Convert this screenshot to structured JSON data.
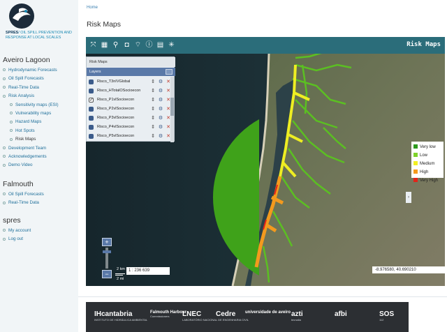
{
  "logo": {
    "brand": "SPRES",
    "tagline": "/ OIL SPILL PREVENTION AND RESPONSE AT LOCAL SCALES",
    "tagline_lines": [
      "SPRES / OIL SPILL",
      "PREVENTION AND",
      "RESPONSE AT",
      "LOCAL SCALES"
    ]
  },
  "sidebar": {
    "sections": [
      {
        "title": "Aveiro Lagoon",
        "items": [
          {
            "label": "Hydrodynamic Forecasts",
            "level": 1
          },
          {
            "label": "Oil Spill Forecasts",
            "level": 1
          },
          {
            "label": "Real-Time Data",
            "level": 1
          },
          {
            "label": "Risk Analysis",
            "level": 1
          },
          {
            "label": "Sensitivity maps (ESI)",
            "level": 2
          },
          {
            "label": "Vulnerability maps",
            "level": 2
          },
          {
            "label": "Hazard Maps",
            "level": 2
          },
          {
            "label": "Hot Spots",
            "level": 2
          },
          {
            "label": "Risk Maps",
            "level": 2,
            "active": true
          },
          {
            "label": "Development Team",
            "level": 1
          },
          {
            "label": "Acknowledgements",
            "level": 1
          },
          {
            "label": "Demo Video",
            "level": 1
          }
        ]
      },
      {
        "title": "Falmouth",
        "items": [
          {
            "label": "Oil Spill Forecasts",
            "level": 1
          },
          {
            "label": "Real-Time Data",
            "level": 1
          }
        ]
      },
      {
        "title": "spres",
        "items": [
          {
            "label": "My account",
            "level": 1
          },
          {
            "label": "Log out",
            "level": 1
          }
        ]
      }
    ]
  },
  "breadcrumb": "Home",
  "page_title": "Risk Maps",
  "map": {
    "title": "Risk Maps",
    "toolbar_icons": [
      "fullscreen-icon",
      "calendar-icon",
      "search-icon",
      "camera-icon",
      "wifi-icon",
      "info-icon",
      "layers-icon",
      "animation-icon"
    ],
    "toolbar_glyphs": [
      "⤧",
      "▦",
      "⚲",
      "◘",
      "⌔",
      "ⓘ",
      "▤",
      "✳"
    ],
    "layer_panel": {
      "header": "Risk Maps",
      "subheader": "Layers",
      "layers": [
        {
          "name": "Risco_T3nIVGlobal",
          "checked": false
        },
        {
          "name": "Risco_HTotalOSocioecon",
          "checked": false
        },
        {
          "name": "Risco_P1vlSocioecon",
          "checked": true
        },
        {
          "name": "Risco_P2vlSocioecon",
          "checked": false
        },
        {
          "name": "Risco_P3vlSocioecon",
          "checked": false
        },
        {
          "name": "Risco_P4vlSocioecon",
          "checked": false
        },
        {
          "name": "Risco_P5vlSocioecon",
          "checked": false
        }
      ]
    },
    "legend": [
      {
        "label": "Very low",
        "color": "#2e9a1e"
      },
      {
        "label": "Low",
        "color": "#7fd32a"
      },
      {
        "label": "Medium",
        "color": "#f3f021"
      },
      {
        "label": "High",
        "color": "#f59a1c"
      },
      {
        "label": "Very High",
        "color": "#e2231a"
      }
    ],
    "zoom_in": "+",
    "zoom_out": "−",
    "scale_km": "2 km",
    "scale_mi": "2 mi",
    "scale_ratio": "1 : 236 639",
    "coordinates": "-8.976580, 40.690210",
    "edge_tab": "›"
  },
  "partners": [
    {
      "label": "IHcantabria",
      "sub": "INSTITUTO DE HIDRÁULICA AMBIENTAL"
    },
    {
      "label": "Falmouth Harbour",
      "sub": "Commissioners"
    },
    {
      "label": "LNEC",
      "sub": "LABORATÓRIO NACIONAL DE ENGENHARIA CIVIL"
    },
    {
      "label": "Cedre",
      "sub": ""
    },
    {
      "label": "universidade de aveiro",
      "sub": ""
    },
    {
      "label": "azti",
      "sub": "tecnalia"
    },
    {
      "label": "afbi",
      "sub": ""
    },
    {
      "label": "SOS",
      "sub": "112"
    }
  ]
}
